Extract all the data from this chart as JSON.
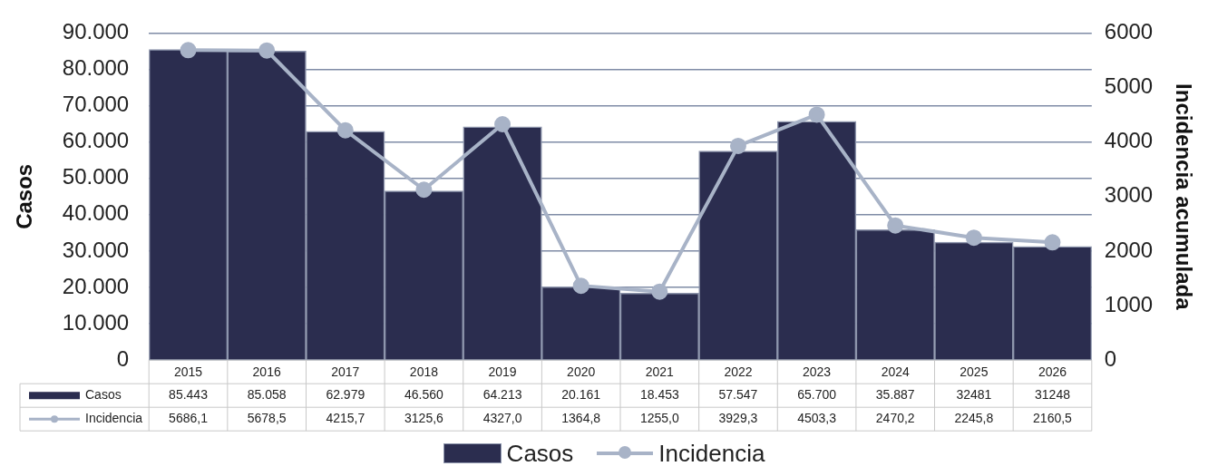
{
  "chart_data": {
    "type": "bar",
    "ylabel": "Casos",
    "y2label": "Incidencia acumulada",
    "categories": [
      "2015",
      "2016",
      "2017",
      "2018",
      "2019",
      "2020",
      "2021",
      "2022",
      "2023",
      "2024",
      "2025",
      "2026"
    ],
    "series": [
      {
        "name": "Casos",
        "color": "#2b2d4f",
        "values": [
          85443,
          85058,
          62979,
          46560,
          64213,
          20161,
          18453,
          57547,
          65700,
          35887,
          32481,
          31248
        ],
        "value_labels": [
          "85.443",
          "85.058",
          "62.979",
          "46.560",
          "64.213",
          "20.161",
          "18.453",
          "57.547",
          "65.700",
          "35.887",
          "32481",
          "31248"
        ]
      },
      {
        "name": "Incidencia",
        "type": "line",
        "axis": "y2",
        "color": "#a8b3c7",
        "values": [
          5686.1,
          5678.5,
          4215.7,
          3125.6,
          4327.0,
          1364.8,
          1255.0,
          3929.3,
          4503.3,
          2470.2,
          2245.8,
          2160.5
        ],
        "value_labels": [
          "5686,1",
          "5678,5",
          "4215,7",
          "3125,6",
          "4327,0",
          "1364,8",
          "1255,0",
          "3929,3",
          "4503,3",
          "2470,2",
          "2245,8",
          "2160,5"
        ]
      }
    ],
    "ylim": [
      0,
      90000
    ],
    "yticks": [
      {
        "value": 0,
        "label": "0"
      },
      {
        "value": 10000,
        "label": "10.000"
      },
      {
        "value": 20000,
        "label": "20.000"
      },
      {
        "value": 30000,
        "label": "30.000"
      },
      {
        "value": 40000,
        "label": "40.000"
      },
      {
        "value": 50000,
        "label": "50.000"
      },
      {
        "value": 60000,
        "label": "60.000"
      },
      {
        "value": 70000,
        "label": "70.000"
      },
      {
        "value": 80000,
        "label": "80.000"
      },
      {
        "value": 90000,
        "label": "90.000"
      }
    ],
    "y2lim": [
      0,
      6000
    ],
    "y2ticks": [
      0,
      1000,
      2000,
      3000,
      4000,
      5000,
      6000
    ],
    "grid": "y",
    "legend": "bottom",
    "marker": "circle",
    "line_style": "solid"
  }
}
